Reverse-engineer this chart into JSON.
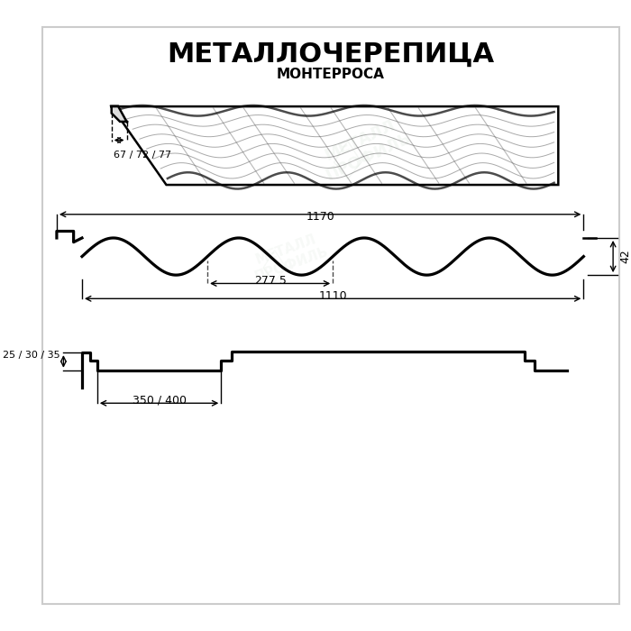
{
  "title_line1": "МЕТАЛЛОЧЕРЕПИЦА",
  "title_line2": "МОНТЕРРОСА",
  "bg_color": "#ffffff",
  "line_color": "#000000",
  "watermark_color": "#c8d8c8",
  "watermark_text": "МЕТАЛЛ ПРОФИЛЬ",
  "dim_67_72_77": "67 / 72 / 77",
  "dim_1110": "1110",
  "dim_277_5": "277.5",
  "dim_42": "42",
  "dim_1170": "1170",
  "dim_350_400": "350 / 400",
  "dim_25_30_35": "25 / 30 / 35"
}
